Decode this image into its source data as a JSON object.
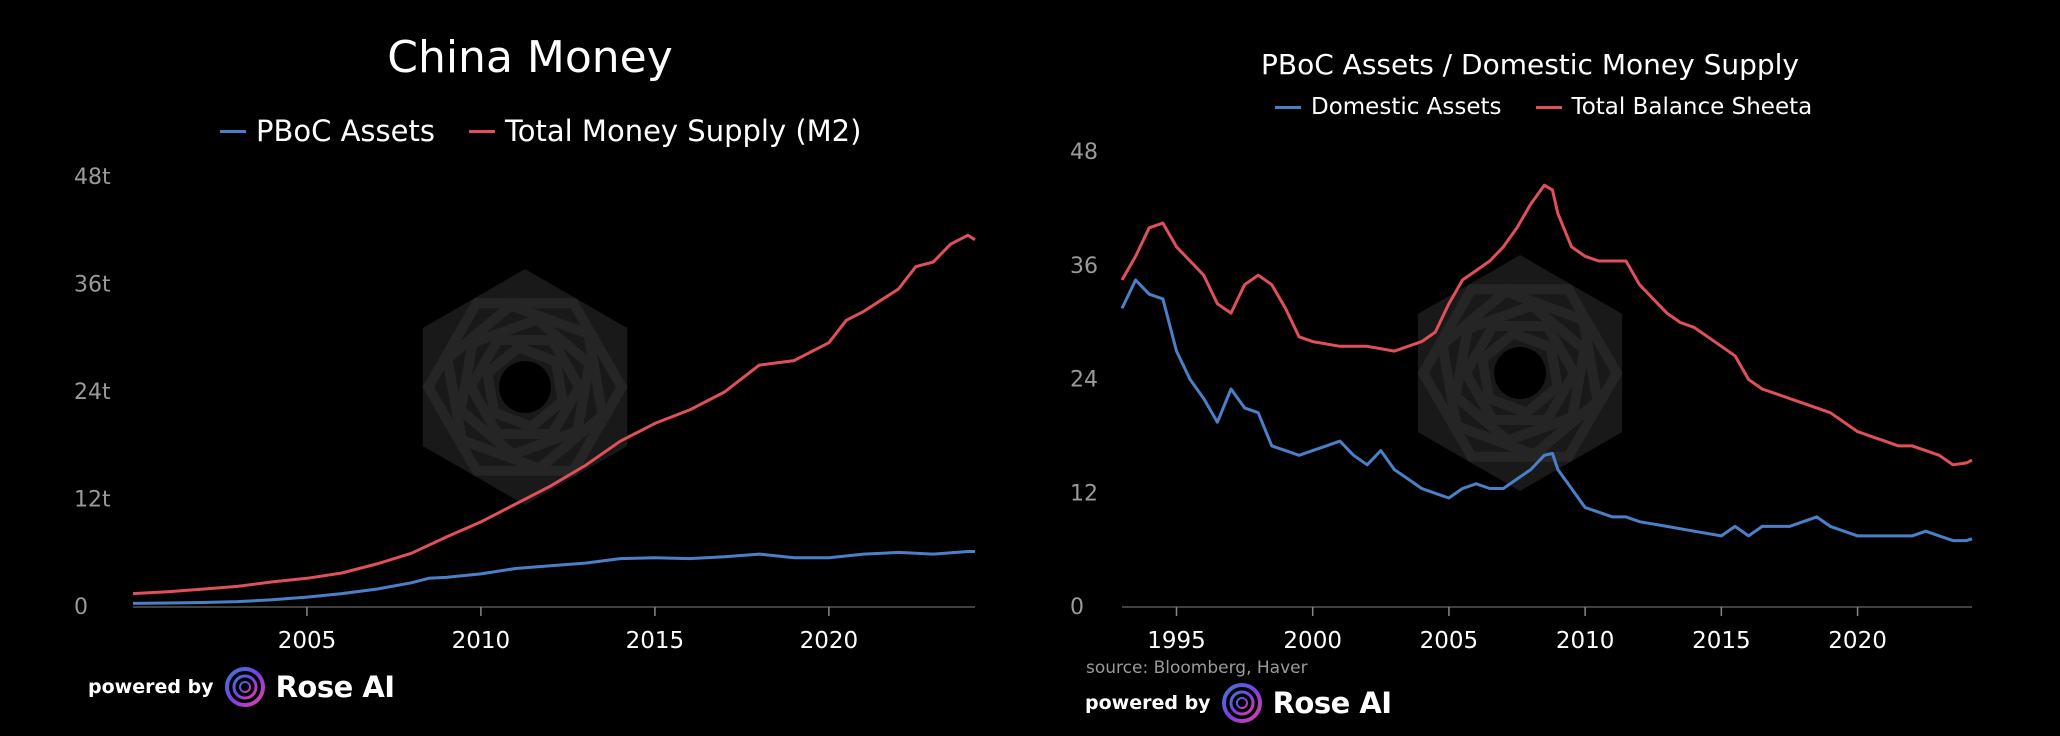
{
  "brand": {
    "prefix": "powered by",
    "name": "Rose AI"
  },
  "source": "source: Bloomberg, Haver",
  "colors": {
    "blue": "#4a80c8",
    "red": "#e0505a",
    "background": "#000000",
    "watermark": "#2a2a2a"
  },
  "chart_data": [
    {
      "type": "line",
      "title": "China Money",
      "xlabel": "",
      "ylabel": "",
      "xlim": [
        2000.0,
        2024.2
      ],
      "ylim": [
        0,
        48
      ],
      "yticks": [
        0,
        12,
        24,
        36,
        48
      ],
      "ytick_labels": [
        "0",
        "12t",
        "24t",
        "36t",
        "48t"
      ],
      "xticks": [
        2005,
        2010,
        2015,
        2020
      ],
      "xtick_labels": [
        "2005",
        "2010",
        "2015",
        "2020"
      ],
      "legend": "top-center",
      "grid": false,
      "series": [
        {
          "name": "PBoC Assets",
          "color": "#4a80c8",
          "x": [
            2000.0,
            2001,
            2002,
            2003,
            2004,
            2005,
            2006,
            2007,
            2008,
            2008.5,
            2009,
            2010,
            2011,
            2012,
            2013,
            2014,
            2015,
            2016,
            2017,
            2018,
            2019,
            2020,
            2021,
            2022,
            2023,
            2024,
            2024.2
          ],
          "y": [
            0.4,
            0.45,
            0.5,
            0.6,
            0.8,
            1.1,
            1.5,
            2.0,
            2.7,
            3.2,
            3.3,
            3.7,
            4.3,
            4.6,
            4.9,
            5.4,
            5.5,
            5.4,
            5.6,
            5.9,
            5.5,
            5.5,
            5.9,
            6.1,
            5.9,
            6.2,
            6.2
          ]
        },
        {
          "name": "Total Money Supply (M2)",
          "color": "#e0505a",
          "x": [
            2000.0,
            2001,
            2002,
            2003,
            2004,
            2005,
            2006,
            2007,
            2008,
            2009,
            2010,
            2011,
            2012,
            2013,
            2014,
            2015,
            2016,
            2017,
            2018,
            2019,
            2020,
            2020.5,
            2021,
            2022,
            2022.5,
            2023,
            2023.5,
            2024,
            2024.2
          ],
          "y": [
            1.5,
            1.7,
            2.0,
            2.3,
            2.8,
            3.2,
            3.8,
            4.8,
            6.0,
            7.8,
            9.5,
            11.5,
            13.5,
            15.8,
            18.5,
            20.5,
            22.0,
            24.0,
            27.0,
            27.5,
            29.5,
            32.0,
            33.0,
            35.5,
            38.0,
            38.5,
            40.5,
            41.5,
            41.0
          ]
        }
      ]
    },
    {
      "type": "line",
      "title": "PBoC Assets / Domestic Money Supply",
      "xlabel": "",
      "ylabel": "",
      "xlim": [
        1993.0,
        2024.2
      ],
      "ylim": [
        0,
        48
      ],
      "yticks": [
        0,
        12,
        24,
        36,
        48
      ],
      "ytick_labels": [
        "0",
        "12",
        "24",
        "36",
        "48"
      ],
      "xticks": [
        1995,
        2000,
        2005,
        2010,
        2015,
        2020
      ],
      "xtick_labels": [
        "1995",
        "2000",
        "2005",
        "2010",
        "2015",
        "2020"
      ],
      "legend": "top-center",
      "grid": false,
      "series": [
        {
          "name": "Domestic Assets",
          "color": "#4a80c8",
          "x": [
            1993.0,
            1993.5,
            1994.0,
            1994.5,
            1995.0,
            1995.5,
            1996.0,
            1996.5,
            1997.0,
            1997.5,
            1998.0,
            1998.5,
            1999.0,
            1999.5,
            2000.0,
            2000.5,
            2001.0,
            2001.5,
            2002.0,
            2002.5,
            2003.0,
            2003.5,
            2004.0,
            2004.5,
            2005.0,
            2005.5,
            2006.0,
            2006.5,
            2007.0,
            2007.5,
            2008.0,
            2008.5,
            2008.8,
            2009.0,
            2009.5,
            2010.0,
            2010.5,
            2011.0,
            2011.5,
            2012.0,
            2013.0,
            2014.0,
            2015.0,
            2015.5,
            2016.0,
            2016.5,
            2017.0,
            2017.5,
            2018.0,
            2018.5,
            2019.0,
            2019.5,
            2020.0,
            2021.0,
            2022.0,
            2022.5,
            2023.0,
            2023.5,
            2024.0,
            2024.2
          ],
          "y": [
            31.5,
            34.5,
            33.0,
            32.5,
            27.0,
            24.0,
            22.0,
            19.5,
            23.0,
            21.0,
            20.5,
            17.0,
            16.5,
            16.0,
            16.5,
            17.0,
            17.5,
            16.0,
            15.0,
            16.5,
            14.5,
            13.5,
            12.5,
            12.0,
            11.5,
            12.5,
            13.0,
            12.5,
            12.5,
            13.5,
            14.5,
            16.0,
            16.2,
            14.5,
            12.5,
            10.5,
            10.0,
            9.5,
            9.5,
            9.0,
            8.5,
            8.0,
            7.5,
            8.5,
            7.5,
            8.5,
            8.5,
            8.5,
            9.0,
            9.5,
            8.5,
            8.0,
            7.5,
            7.5,
            7.5,
            8.0,
            7.5,
            7.0,
            7.0,
            7.2
          ]
        },
        {
          "name": "Total Balance Sheeta",
          "color": "#e0505a",
          "x": [
            1993.0,
            1993.5,
            1994.0,
            1994.5,
            1995.0,
            1995.5,
            1996.0,
            1996.5,
            1997.0,
            1997.5,
            1998.0,
            1998.5,
            1999.0,
            1999.5,
            2000.0,
            2001.0,
            2002.0,
            2003.0,
            2004.0,
            2004.5,
            2005.0,
            2005.5,
            2006.0,
            2006.5,
            2007.0,
            2007.5,
            2008.0,
            2008.5,
            2008.8,
            2009.0,
            2009.5,
            2010.0,
            2010.5,
            2011.0,
            2011.5,
            2012.0,
            2012.5,
            2013.0,
            2013.5,
            2014.0,
            2014.5,
            2015.0,
            2015.5,
            2016.0,
            2016.5,
            2017.0,
            2017.5,
            2018.0,
            2018.5,
            2019.0,
            2019.5,
            2020.0,
            2020.5,
            2021.0,
            2021.5,
            2022.0,
            2022.5,
            2023.0,
            2023.5,
            2024.0,
            2024.2
          ],
          "y": [
            34.5,
            37.0,
            40.0,
            40.5,
            38.0,
            36.5,
            35.0,
            32.0,
            31.0,
            34.0,
            35.0,
            34.0,
            31.5,
            28.5,
            28.0,
            27.5,
            27.5,
            27.0,
            28.0,
            29.0,
            32.0,
            34.5,
            35.5,
            36.5,
            38.0,
            40.0,
            42.5,
            44.5,
            44.0,
            41.5,
            38.0,
            37.0,
            36.5,
            36.5,
            36.5,
            34.0,
            32.5,
            31.0,
            30.0,
            29.5,
            28.5,
            27.5,
            26.5,
            24.0,
            23.0,
            22.5,
            22.0,
            21.5,
            21.0,
            20.5,
            19.5,
            18.5,
            18.0,
            17.5,
            17.0,
            17.0,
            16.5,
            16.0,
            15.0,
            15.2,
            15.5
          ]
        }
      ]
    }
  ]
}
